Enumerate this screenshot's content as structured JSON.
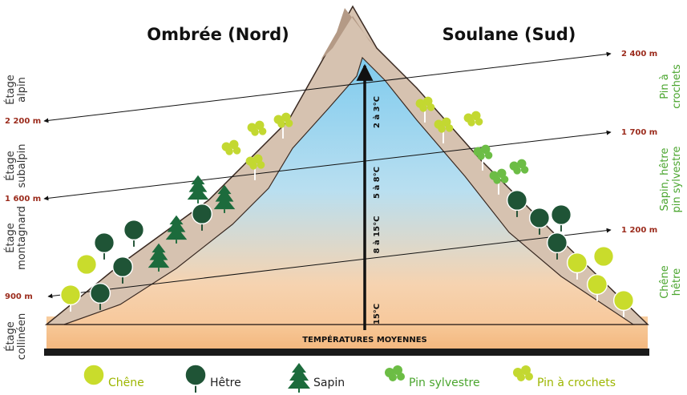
{
  "headings": {
    "north": "Ombrée (Nord)",
    "south": "Soulane (Sud)"
  },
  "zones": [
    {
      "lines": [
        "Étage",
        "alpin"
      ]
    },
    {
      "lines": [
        "Étage",
        "subalpin"
      ]
    },
    {
      "lines": [
        "Étage",
        "montagnard"
      ]
    },
    {
      "lines": [
        "Étage",
        "collinéen"
      ]
    }
  ],
  "altitudes_left": [
    "2 200 m",
    "1 600 m",
    "900 m"
  ],
  "altitudes_right": [
    "2 400 m",
    "1 700 m",
    "1 200 m"
  ],
  "vegetation_right": [
    {
      "lines": [
        "Pin à",
        "crochets"
      ]
    },
    {
      "lines": [
        "Sapin, hêtre",
        "pin sylvestre"
      ]
    },
    {
      "lines": [
        "Chêne",
        "hêtre"
      ]
    }
  ],
  "temperatures": [
    "2 à 3°C",
    "5 à 8°C",
    "8 à 15°C",
    "15°C"
  ],
  "temperature_axis": "TEMPÉRATURES MOYENNES",
  "legend": [
    "Chêne",
    "Hêtre",
    "Sapin",
    "Pin sylvestre",
    "Pin à crochets"
  ]
}
